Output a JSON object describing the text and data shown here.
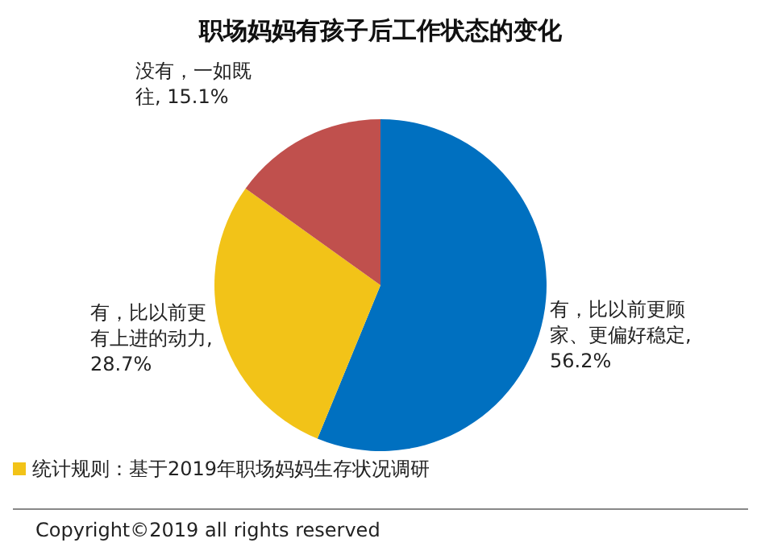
{
  "chart_data": {
    "type": "pie",
    "title": "职场妈妈有孩子后工作状态的变化",
    "categories": [
      "有，比以前更顾家、更偏好稳定",
      "有，比以前更有上进的动力",
      "没有，一如既往"
    ],
    "values": [
      56.2,
      28.7,
      15.1
    ],
    "colors": [
      "#0070c0",
      "#f2c318",
      "#c0504d"
    ],
    "value_labels": [
      ", 56.2%",
      ", 28.7%",
      ", 15.1%"
    ],
    "annotations": [
      "统计规则：基于2019年职场妈妈生存状况调研",
      "Copyright©2019 all rights reserved"
    ]
  }
}
